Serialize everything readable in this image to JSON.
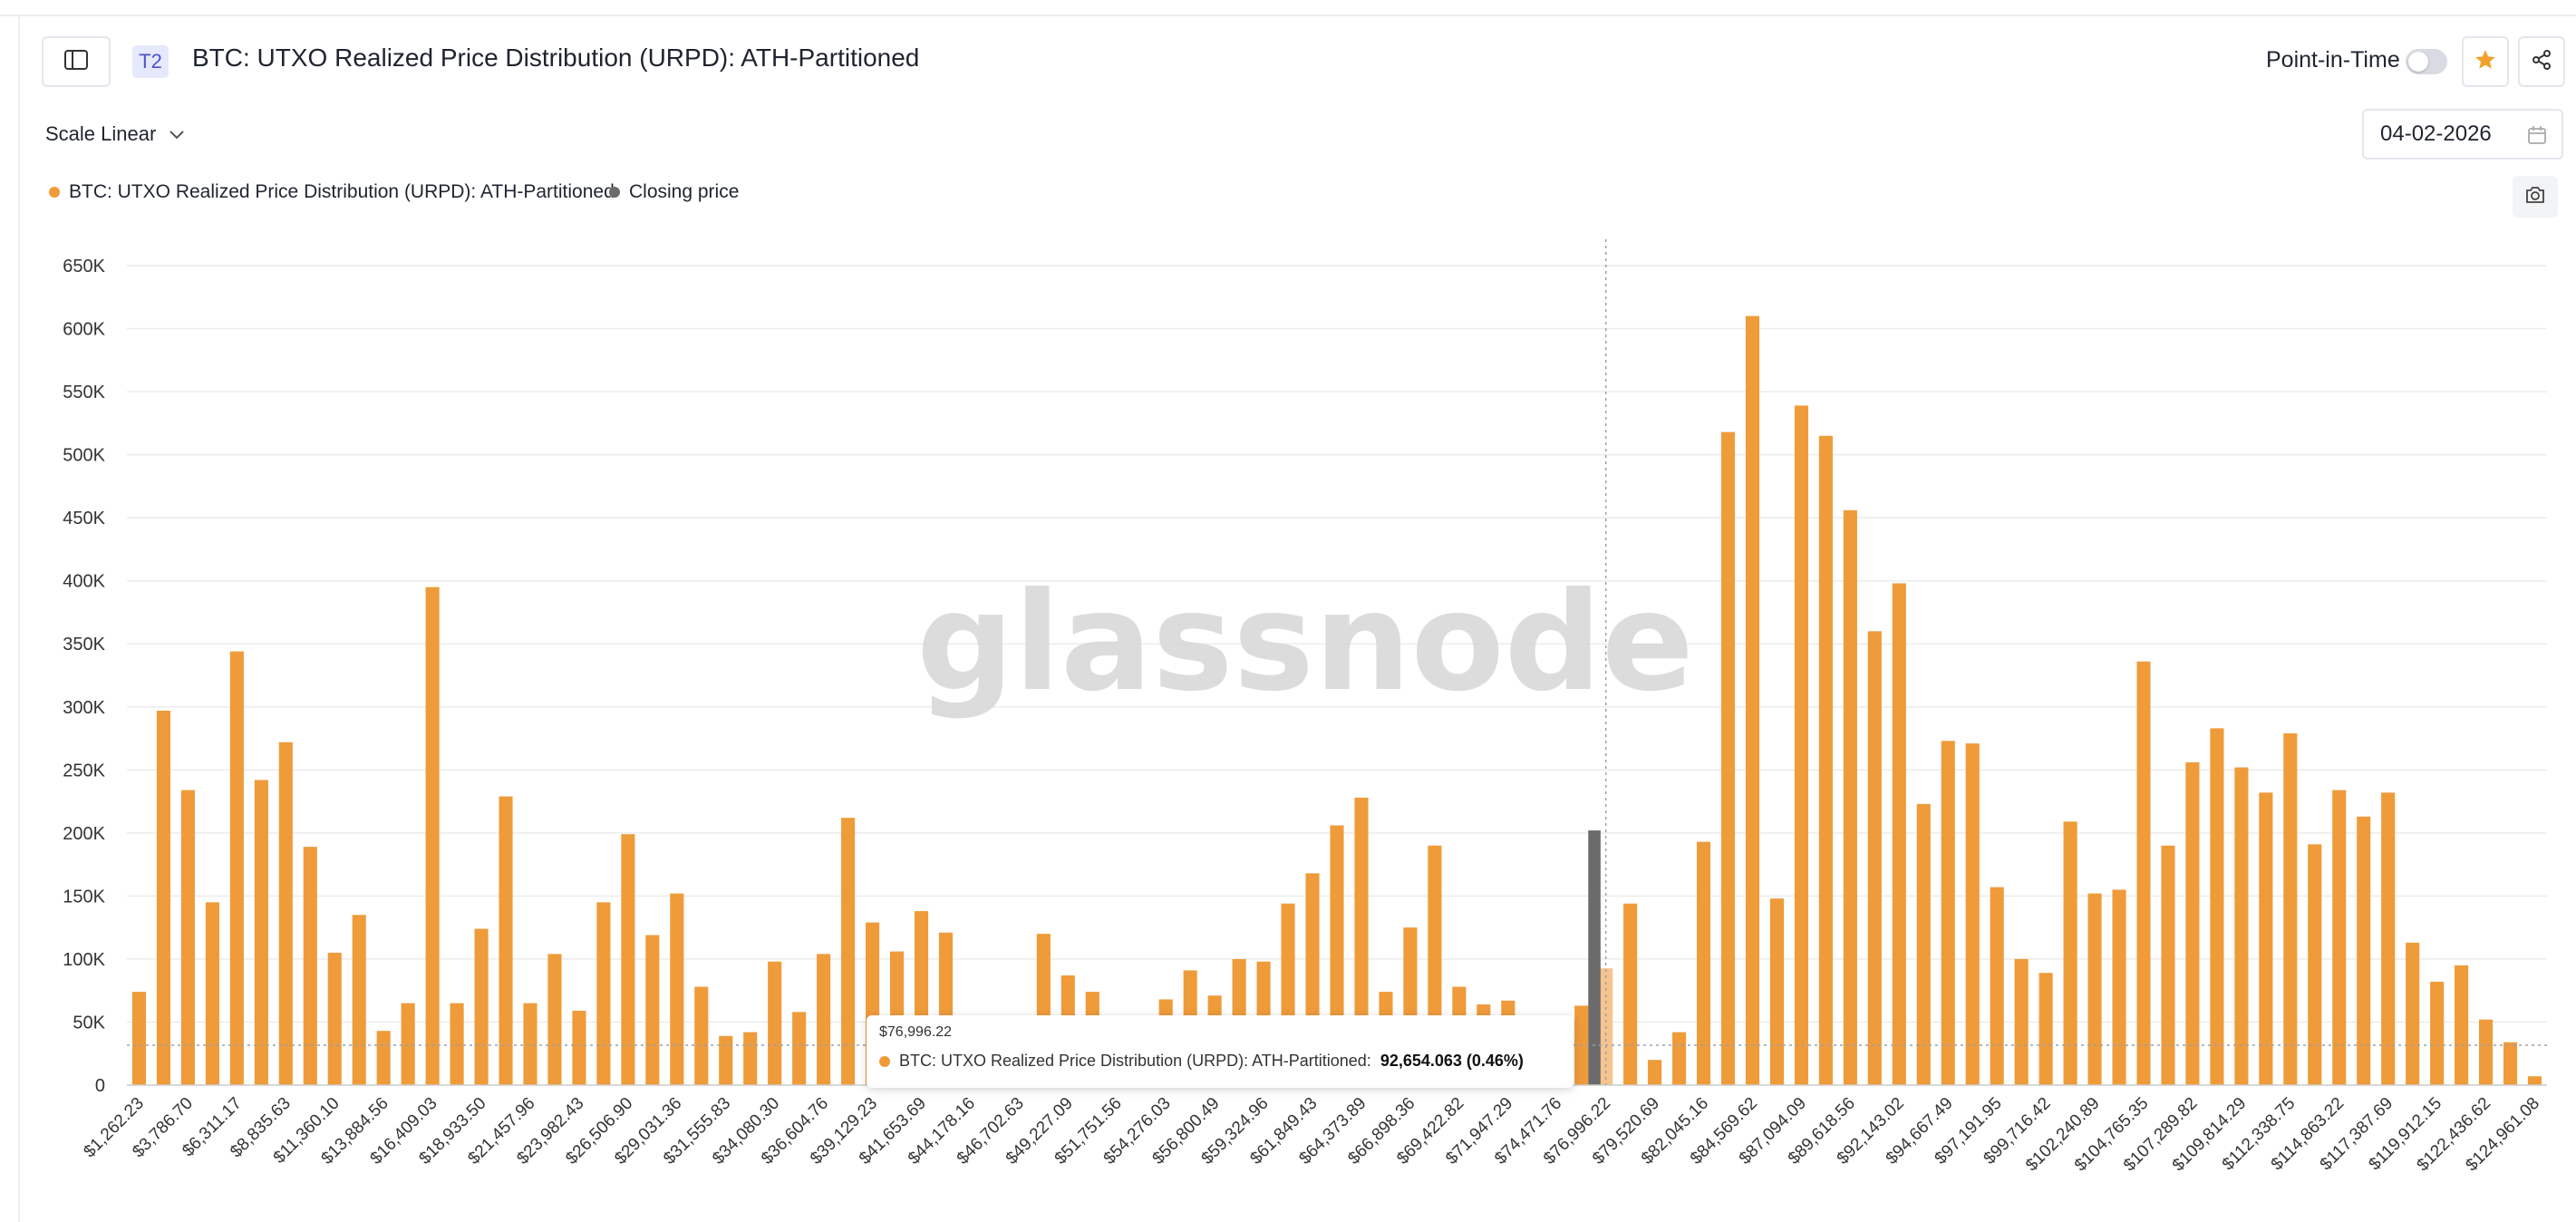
{
  "header": {
    "tier_badge": "T2",
    "title": "BTC: UTXO Realized Price Distribution (URPD): ATH-Partitioned",
    "point_in_time_label": "Point-in-Time",
    "point_in_time_enabled": false
  },
  "controls": {
    "scale_label": "Scale Linear",
    "date_value": "04-02-2026"
  },
  "legend": {
    "urpd": "BTC: UTXO Realized Price Distribution (URPD): ATH-Partitioned",
    "closing": "Closing price"
  },
  "colors": {
    "bar": "#ef9b3a",
    "bar_highlight": "#f6c48e",
    "closing": "#6b6b6b",
    "watermark": "#d9d9d9"
  },
  "watermark": "glassnode",
  "tooltip": {
    "title": "$76,996.22",
    "series": "BTC: UTXO Realized Price Distribution (URPD): ATH-Partitioned:",
    "value": "92,654.063 (0.46%)"
  },
  "chart_data": {
    "type": "bar",
    "ylim": [
      0,
      650000
    ],
    "yticks": [
      "650K",
      "600K",
      "550K",
      "500K",
      "450K",
      "400K",
      "350K",
      "300K",
      "250K",
      "200K",
      "150K",
      "100K",
      "50K",
      "0"
    ],
    "x_tick_labels": [
      "$1,262.23",
      "$3,786.70",
      "$6,311.17",
      "$8,835.63",
      "$11,360.10",
      "$13,884.56",
      "$16,409.03",
      "$18,933.50",
      "$21,457.96",
      "$23,982.43",
      "$26,506.90",
      "$29,031.36",
      "$31,555.83",
      "$34,080.30",
      "$36,604.76",
      "$39,129.23",
      "$41,653.69",
      "$44,178.16",
      "$46,702.63",
      "$49,227.09",
      "$51,751.56",
      "$54,276.03",
      "$56,800.49",
      "$59,324.96",
      "$61,849.43",
      "$64,373.89",
      "$66,898.36",
      "$69,422.82",
      "$71,947.29",
      "$74,471.76",
      "$76,996.22",
      "$79,520.69",
      "$82,045.16",
      "$84,569.62",
      "$87,094.09",
      "$89,618.56",
      "$92,143.02",
      "$94,667.49",
      "$97,191.95",
      "$99,716.42",
      "$102,240.89",
      "$104,765.35",
      "$107,289.82",
      "$109,814.29",
      "$112,338.75",
      "$114,863.22",
      "$117,387.69",
      "$119,912.15",
      "$122,436.62",
      "$124,961.08"
    ],
    "values": [
      74000,
      297000,
      234000,
      145000,
      344000,
      242000,
      272000,
      189000,
      105000,
      135000,
      43000,
      65000,
      395000,
      65000,
      124000,
      229000,
      65000,
      104000,
      59000,
      145000,
      199000,
      119000,
      152000,
      78000,
      39000,
      42000,
      98000,
      58000,
      104000,
      212000,
      129000,
      106000,
      138000,
      121000,
      40000,
      28000,
      23000,
      120000,
      87000,
      74000,
      17000,
      25000,
      68000,
      91000,
      71000,
      100000,
      98000,
      144000,
      168000,
      206000,
      228000,
      74000,
      125000,
      190000,
      78000,
      64000,
      67000,
      40000,
      21000,
      63000,
      92654,
      144000,
      20000,
      42000,
      193000,
      518000,
      610000,
      148000,
      539000,
      515000,
      456000,
      360000,
      398000,
      223000,
      273000,
      271000,
      157000,
      100000,
      89000,
      209000,
      152000,
      155000,
      336000,
      190000,
      256000,
      283000,
      252000,
      232000,
      279000,
      191000,
      234000,
      213000,
      232000,
      113000,
      82000,
      95000,
      52000,
      34000,
      7000
    ],
    "highlight_index": 60,
    "closing_price": {
      "label": "Closing price",
      "value": 202000,
      "x": "$76,996.22"
    }
  }
}
